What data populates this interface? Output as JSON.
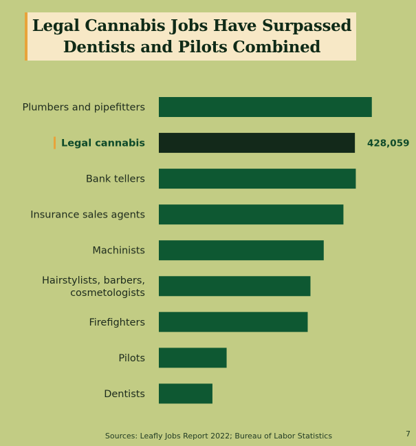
{
  "title": {
    "line1": "Legal Cannabis Jobs Have Surpassed",
    "line2": "Dentists and Pilots Combined"
  },
  "colors": {
    "background": "#c2cc84",
    "bar": "#0e5832",
    "highlight_bar": "#13291a",
    "highlight_text": "#0e4a2a",
    "accent": "#e8a33a",
    "label_text": "#1c2a1c"
  },
  "chart_data": {
    "type": "bar",
    "orientation": "horizontal",
    "categories": [
      [
        "Plumbers and pipefitters"
      ],
      [
        "Legal cannabis"
      ],
      [
        "Bank tellers"
      ],
      [
        "Insurance sales agents"
      ],
      [
        "Machinists"
      ],
      [
        "Hairstylists, barbers,",
        "cosmetologists"
      ],
      [
        "Firefighters"
      ],
      [
        "Pilots"
      ],
      [
        "Dentists"
      ]
    ],
    "values": [
      465000,
      428059,
      430000,
      403000,
      360000,
      331000,
      325000,
      148000,
      117000
    ],
    "highlight_index": 1,
    "data_labels": [
      "",
      "428,059",
      "",
      "",
      "",
      "",
      "",
      "",
      ""
    ],
    "xlim": [
      0,
      500000
    ]
  },
  "source": "Sources: Leafly Jobs Report 2022; Bureau of Labor Statistics",
  "page_number": "7"
}
